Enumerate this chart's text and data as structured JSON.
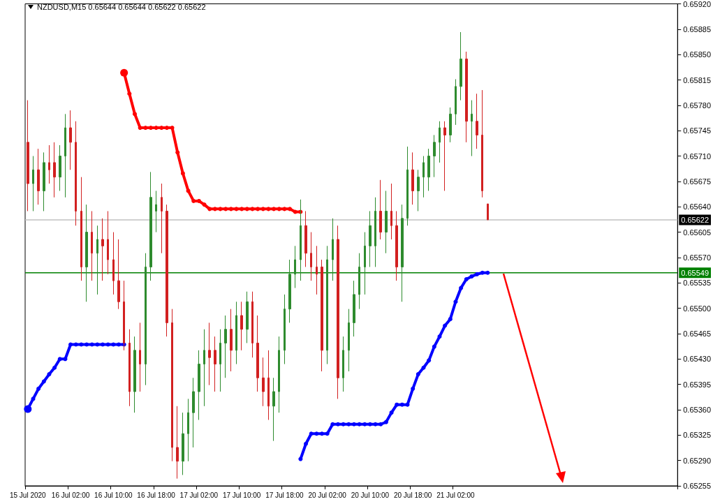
{
  "chart_data": {
    "type": "candlestick",
    "title": "NZDUSD,M15  0.65644 0.65644 0.65622 0.65622",
    "categories": [
      "15 Jul 2020",
      null,
      null,
      null,
      null,
      null,
      null,
      null,
      "16 Jul 02:00",
      null,
      null,
      null,
      null,
      null,
      null,
      null,
      "16 Jul 10:00",
      null,
      null,
      null,
      null,
      null,
      null,
      null,
      "16 Jul 18:00",
      null,
      null,
      null,
      null,
      null,
      null,
      null,
      "17 Jul 02:00",
      null,
      null,
      null,
      null,
      null,
      null,
      null,
      "17 Jul 10:00",
      null,
      null,
      null,
      null,
      null,
      null,
      null,
      "17 Jul 18:00",
      null,
      null,
      null,
      null,
      null,
      null,
      null,
      "20 Jul 02:00",
      null,
      null,
      null,
      null,
      null,
      null,
      null,
      "20 Jul 10:00",
      null,
      null,
      null,
      null,
      null,
      null,
      null,
      "20 Jul 18:00",
      null,
      null,
      null,
      null,
      null,
      null,
      null,
      "21 Jul 02:00",
      null,
      null,
      null,
      null,
      null,
      null,
      null,
      null,
      null,
      null,
      null,
      null,
      null,
      null,
      null,
      null,
      null,
      null,
      null,
      null,
      null,
      null,
      null,
      null,
      null,
      null,
      null,
      null,
      null,
      null,
      null,
      null,
      null,
      null,
      null,
      null,
      null,
      null,
      null,
      null,
      null
    ],
    "ohlc": [
      [
        0.65729,
        0.65787,
        0.65634,
        0.65672
      ],
      [
        0.65672,
        0.6571,
        0.65634,
        0.65691
      ],
      [
        0.65691,
        0.6572,
        0.65643,
        0.65662
      ],
      [
        0.65662,
        0.65715,
        0.65634,
        0.65701
      ],
      [
        0.65701,
        0.65725,
        0.65672,
        0.65691
      ],
      [
        0.65701,
        0.65729,
        0.65653,
        0.65681
      ],
      [
        0.65681,
        0.65725,
        0.65662,
        0.6571
      ],
      [
        0.6571,
        0.65768,
        0.65653,
        0.65749
      ],
      [
        0.65749,
        0.65773,
        0.65691,
        0.65729
      ],
      [
        0.65729,
        0.65758,
        0.65614,
        0.65634
      ],
      [
        0.65634,
        0.65681,
        0.65538,
        0.65557
      ],
      [
        0.65557,
        0.65643,
        0.65509,
        0.65605
      ],
      [
        0.65605,
        0.65634,
        0.65538,
        0.65576
      ],
      [
        0.65576,
        0.65614,
        0.65519,
        0.65595
      ],
      [
        0.65595,
        0.65624,
        0.65538,
        0.65586
      ],
      [
        0.65595,
        0.65634,
        0.65547,
        0.65567
      ],
      [
        0.65567,
        0.65605,
        0.65519,
        0.65538
      ],
      [
        0.65538,
        0.65595,
        0.65499,
        0.65509
      ],
      [
        0.65509,
        0.65538,
        0.65442,
        0.65452
      ],
      [
        0.65452,
        0.65471,
        0.65365,
        0.65385
      ],
      [
        0.65385,
        0.65461,
        0.65356,
        0.65442
      ],
      [
        0.65442,
        0.6548,
        0.65385,
        0.65423
      ],
      [
        0.65423,
        0.65576,
        0.65394,
        0.65557
      ],
      [
        0.65557,
        0.65688,
        0.65538,
        0.65653
      ],
      [
        0.65634,
        0.65662,
        0.65605,
        0.65643
      ],
      [
        0.65653,
        0.65672,
        0.65576,
        0.65634
      ],
      [
        0.65634,
        0.65643,
        0.65461,
        0.6548
      ],
      [
        0.6548,
        0.65499,
        0.65289,
        0.65308
      ],
      [
        0.65308,
        0.65365,
        0.65265,
        0.65289
      ],
      [
        0.65289,
        0.65356,
        0.6527,
        0.65327
      ],
      [
        0.65327,
        0.65375,
        0.65289,
        0.65356
      ],
      [
        0.65356,
        0.65404,
        0.65308,
        0.65385
      ],
      [
        0.65385,
        0.65442,
        0.65346,
        0.65423
      ],
      [
        0.65423,
        0.65471,
        0.65365,
        0.65442
      ],
      [
        0.65442,
        0.6548,
        0.65394,
        0.65432
      ],
      [
        0.65442,
        0.65461,
        0.65385,
        0.65423
      ],
      [
        0.65423,
        0.65471,
        0.65385,
        0.65452
      ],
      [
        0.65452,
        0.6549,
        0.65404,
        0.65471
      ],
      [
        0.65471,
        0.65499,
        0.65413,
        0.65442
      ],
      [
        0.65442,
        0.65509,
        0.65423,
        0.6549
      ],
      [
        0.6549,
        0.65509,
        0.65442,
        0.65471
      ],
      [
        0.65471,
        0.65523,
        0.65452,
        0.65509
      ],
      [
        0.65509,
        0.65523,
        0.65432,
        0.65452
      ],
      [
        0.65452,
        0.6549,
        0.65385,
        0.65404
      ],
      [
        0.65404,
        0.65432,
        0.65365,
        0.65385
      ],
      [
        0.65404,
        0.65442,
        0.65346,
        0.65365
      ],
      [
        0.65365,
        0.65404,
        0.65317,
        0.65385
      ],
      [
        0.65385,
        0.65461,
        0.65356,
        0.65442
      ],
      [
        0.65442,
        0.65519,
        0.65423,
        0.65499
      ],
      [
        0.65499,
        0.65567,
        0.6548,
        0.65547
      ],
      [
        0.65547,
        0.65586,
        0.65528,
        0.65567
      ],
      [
        0.65567,
        0.6565,
        0.65538,
        0.65614
      ],
      [
        0.65614,
        0.65634,
        0.65557,
        0.65576
      ],
      [
        0.65576,
        0.65605,
        0.65538,
        0.65557
      ],
      [
        0.65557,
        0.65586,
        0.65519,
        0.65547
      ],
      [
        0.65557,
        0.65567,
        0.65413,
        0.65442
      ],
      [
        0.65442,
        0.65586,
        0.65423,
        0.65567
      ],
      [
        0.65567,
        0.65624,
        0.65538,
        0.65595
      ],
      [
        0.65595,
        0.65614,
        0.65375,
        0.65404
      ],
      [
        0.65404,
        0.65461,
        0.65385,
        0.65442
      ],
      [
        0.65442,
        0.65499,
        0.65413,
        0.6548
      ],
      [
        0.6548,
        0.65538,
        0.65461,
        0.65519
      ],
      [
        0.65519,
        0.65576,
        0.65499,
        0.65557
      ],
      [
        0.65557,
        0.65605,
        0.65519,
        0.65586
      ],
      [
        0.65586,
        0.65634,
        0.65557,
        0.65614
      ],
      [
        0.65586,
        0.65653,
        0.65557,
        0.65634
      ],
      [
        0.65634,
        0.65677,
        0.65595,
        0.65605
      ],
      [
        0.65605,
        0.65662,
        0.65576,
        0.65634
      ],
      [
        0.65634,
        0.65672,
        0.65595,
        0.65614
      ],
      [
        0.65614,
        0.65634,
        0.65538,
        0.65557
      ],
      [
        0.65557,
        0.65643,
        0.65509,
        0.65624
      ],
      [
        0.65624,
        0.65723,
        0.65614,
        0.65691
      ],
      [
        0.65691,
        0.65715,
        0.65643,
        0.65662
      ],
      [
        0.65662,
        0.65691,
        0.65634,
        0.65681
      ],
      [
        0.65681,
        0.6571,
        0.65653,
        0.65701
      ],
      [
        0.65681,
        0.6572,
        0.65662,
        0.6571
      ],
      [
        0.6571,
        0.65739,
        0.65681,
        0.65729
      ],
      [
        0.65729,
        0.65758,
        0.65701,
        0.65749
      ],
      [
        0.65749,
        0.65758,
        0.65662,
        0.65739
      ],
      [
        0.65739,
        0.65777,
        0.65729,
        0.65768
      ],
      [
        0.65768,
        0.65816,
        0.65753,
        0.65806
      ],
      [
        0.65806,
        0.65881,
        0.65787,
        0.65844
      ],
      [
        0.65844,
        0.65854,
        0.65729,
        0.65758
      ],
      [
        0.65758,
        0.65787,
        0.6571,
        0.65768
      ],
      [
        0.65758,
        0.65796,
        0.6572,
        0.65739
      ],
      [
        0.65739,
        0.65801,
        0.65653,
        0.65662
      ],
      [
        0.65644,
        0.65644,
        0.65622,
        0.65622
      ],
      null,
      null,
      null,
      null,
      null,
      null,
      null,
      null,
      null,
      null,
      null,
      null,
      null,
      null,
      null,
      null,
      null,
      null,
      null,
      null,
      null,
      null,
      null,
      null,
      null,
      null,
      null,
      null,
      null,
      null,
      null,
      null,
      null,
      null,
      null
    ],
    "series": [
      {
        "type": "line",
        "color": "#ff0000",
        "values": [
          null,
          null,
          null,
          null,
          null,
          null,
          null,
          null,
          null,
          null,
          null,
          null,
          null,
          null,
          null,
          null,
          null,
          null,
          0.65825,
          0.65796,
          0.65768,
          0.65749,
          0.65749,
          0.65749,
          0.65749,
          0.65749,
          0.65749,
          0.65749,
          0.65715,
          0.65686,
          0.65662,
          0.65648,
          0.65648,
          0.65643,
          0.65637,
          0.65637,
          0.65637,
          0.65637,
          0.65637,
          0.65637,
          0.65637,
          0.65637,
          0.65637,
          0.65637,
          0.65637,
          0.65637,
          0.65637,
          0.65637,
          0.65637,
          0.65637,
          0.65633,
          0.65633,
          null,
          null,
          null,
          null,
          null,
          null,
          null,
          null,
          null,
          null,
          null,
          null,
          null,
          null,
          null,
          null,
          null,
          null,
          null,
          null,
          null,
          null,
          null,
          null,
          null,
          null,
          null,
          null,
          null,
          null,
          null,
          null,
          null,
          null,
          null,
          null,
          null,
          null,
          null,
          null,
          null,
          null,
          null,
          null,
          null,
          null,
          null,
          null,
          null,
          null,
          null,
          null,
          null,
          null,
          null,
          null,
          null,
          null,
          null,
          null,
          null,
          null,
          null,
          null,
          null,
          null,
          null,
          null,
          null,
          null
        ]
      },
      {
        "type": "line",
        "color": "#0000ff",
        "values": [
          0.65361,
          0.65375,
          0.65389,
          0.65399,
          0.65409,
          0.65418,
          0.6543,
          0.6543,
          0.6545,
          0.6545,
          0.6545,
          0.6545,
          0.6545,
          0.6545,
          0.6545,
          0.6545,
          0.6545,
          0.6545,
          0.6545,
          null,
          null,
          null,
          null,
          null,
          null,
          null,
          null,
          null,
          null,
          null,
          null,
          null,
          null,
          null,
          null,
          null,
          null,
          null,
          null,
          null,
          null,
          null,
          null,
          null,
          null,
          null,
          null,
          null,
          null,
          null,
          null,
          0.65292,
          0.65313,
          0.65327,
          0.65327,
          0.65327,
          0.65327,
          0.6534,
          0.6534,
          0.6534,
          0.6534,
          0.6534,
          0.6534,
          0.6534,
          0.6534,
          0.6534,
          0.6534,
          0.65343,
          0.65356,
          0.65367,
          0.65367,
          0.65367,
          0.65389,
          0.65409,
          0.65418,
          0.65428,
          0.65447,
          0.65461,
          0.65476,
          0.65485,
          0.65509,
          0.65528,
          0.6554,
          0.65544,
          0.65547,
          0.65549,
          0.65549,
          null,
          null,
          null,
          null,
          null,
          null,
          null,
          null,
          null,
          null,
          null,
          null,
          null,
          null,
          null,
          null,
          null,
          null,
          null,
          null,
          null,
          null,
          null,
          null,
          null,
          null,
          null,
          null,
          null,
          null,
          null,
          null,
          null,
          null,
          null
        ]
      }
    ],
    "ylim": [
      0.65255,
      0.6592
    ],
    "yticks": [
      0.65255,
      {
        "value": 0.6529,
        "label": "0.65290"
      },
      0.65325,
      {
        "value": 0.6536,
        "label": "0.65360"
      },
      0.65395,
      {
        "value": 0.6543,
        "label": "0.65430"
      },
      0.65465,
      {
        "value": 0.655,
        "label": "0.65500"
      },
      0.65535,
      {
        "value": 0.6557,
        "label": "0.65570"
      },
      0.65605,
      {
        "value": 0.6564,
        "label": "0.65640"
      },
      0.65675,
      {
        "value": 0.6571,
        "label": "0.65710"
      },
      0.65745,
      {
        "value": 0.6578,
        "label": "0.65780"
      },
      0.65815,
      {
        "value": 0.6585,
        "label": "0.65850"
      },
      0.65885,
      {
        "value": 0.6592,
        "label": "0.65920"
      }
    ],
    "ref_lines": [
      {
        "axis": "y",
        "value": 0.65622,
        "label": "0.65622",
        "color": "#c0c0c0"
      },
      {
        "axis": "y",
        "value": 0.65549,
        "label": "0.65549",
        "color": "#008000"
      }
    ],
    "marker": "circle",
    "grid": false
  }
}
